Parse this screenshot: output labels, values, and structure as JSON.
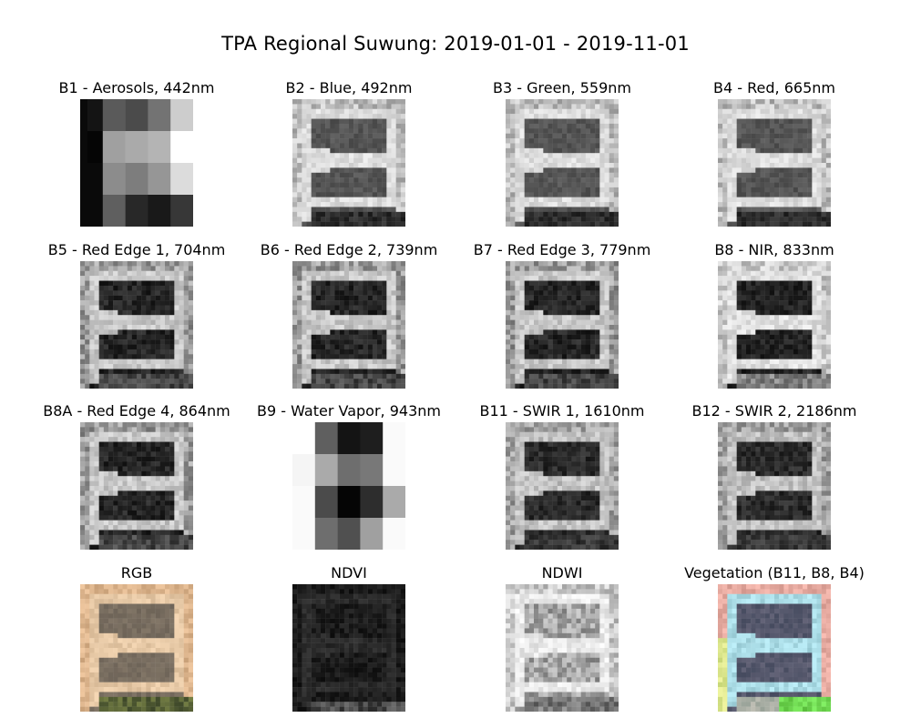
{
  "title": "TPA Regional Suwung: 2019-01-01 - 2019-11-01",
  "panels": [
    {
      "title": "B1 - Aerosols, 442nm",
      "kind": "b1"
    },
    {
      "title": "B2 - Blue, 492nm",
      "kind": "vis"
    },
    {
      "title": "B3 - Green, 559nm",
      "kind": "vis"
    },
    {
      "title": "B4 - Red, 665nm",
      "kind": "vis"
    },
    {
      "title": "B5 - Red Edge 1, 704nm",
      "kind": "ir"
    },
    {
      "title": "B6 - Red Edge 2, 739nm",
      "kind": "ir"
    },
    {
      "title": "B7 - Red Edge 3, 779nm",
      "kind": "ir"
    },
    {
      "title": "B8 - NIR, 833nm",
      "kind": "nir"
    },
    {
      "title": "B8A - Red Edge 4, 864nm",
      "kind": "ir"
    },
    {
      "title": "B9 - Water Vapor, 943nm",
      "kind": "b9"
    },
    {
      "title": "B11 - SWIR 1, 1610nm",
      "kind": "swir"
    },
    {
      "title": "B12 - SWIR 2, 2186nm",
      "kind": "swir"
    },
    {
      "title": "RGB",
      "kind": "rgb"
    },
    {
      "title": "NDVI",
      "kind": "ndvi"
    },
    {
      "title": "NDWI",
      "kind": "ndwi"
    },
    {
      "title": "Vegetation (B11, B8, B4)",
      "kind": "veg"
    }
  ]
}
